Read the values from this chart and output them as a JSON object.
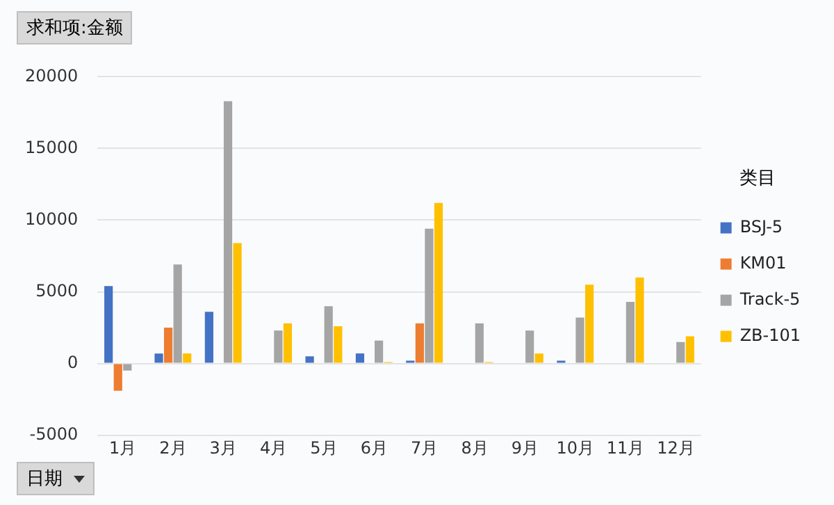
{
  "chart_data": {
    "type": "bar",
    "title": "求和项:金额",
    "xlabel": "日期",
    "legend_title": "类目",
    "categories": [
      "1月",
      "2月",
      "3月",
      "4月",
      "5月",
      "6月",
      "7月",
      "8月",
      "9月",
      "10月",
      "11月",
      "12月"
    ],
    "series": [
      {
        "name": "BSJ-5",
        "color": "#4472c4",
        "values": [
          5400,
          700,
          3600,
          null,
          500,
          700,
          200,
          null,
          null,
          200,
          null,
          null
        ]
      },
      {
        "name": "KM01",
        "color": "#ed7d31",
        "values": [
          -1900,
          2500,
          null,
          null,
          null,
          null,
          2800,
          null,
          null,
          null,
          null,
          null
        ]
      },
      {
        "name": "Track-5",
        "color": "#a5a5a5",
        "values": [
          -500,
          6900,
          18300,
          2300,
          4000,
          1600,
          9400,
          2800,
          2300,
          3200,
          4300,
          1500
        ]
      },
      {
        "name": "ZB-101",
        "color": "#ffc000",
        "values": [
          null,
          700,
          8400,
          2800,
          2600,
          100,
          11200,
          100,
          700,
          5500,
          6000,
          1900
        ]
      }
    ],
    "ylim": [
      -5000,
      20000
    ],
    "yticks": [
      -5000,
      0,
      5000,
      10000,
      15000,
      20000
    ],
    "grid": "y",
    "legend": "right"
  }
}
